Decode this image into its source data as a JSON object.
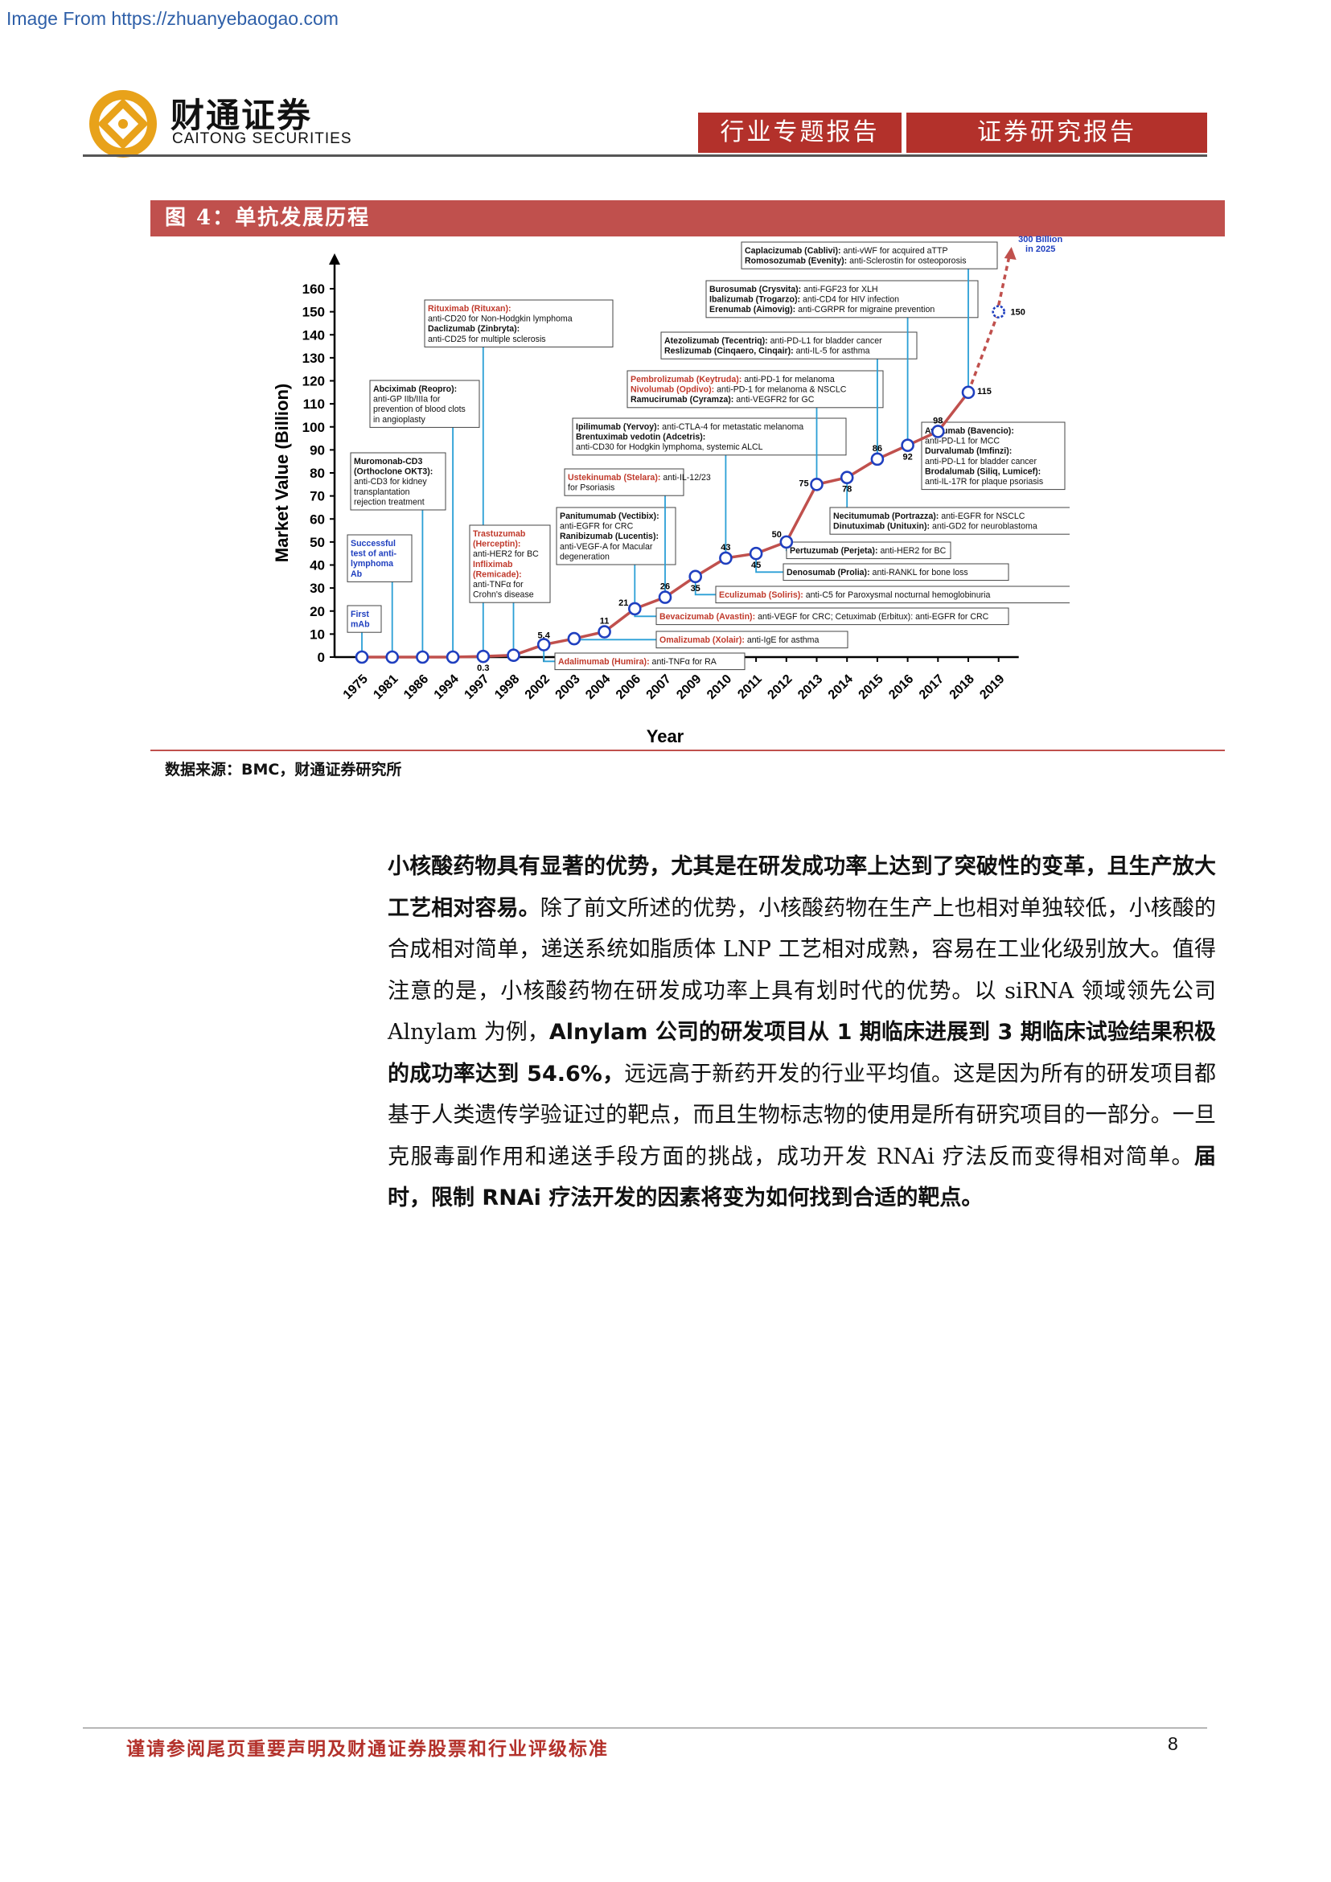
{
  "source_banner": "Image From https://zhuanyebaogao.com",
  "brand": {
    "name_cn": "财通证券",
    "name_en": "CAITONG SECURITIES"
  },
  "header": {
    "tag1": "行业专题报告",
    "tag2": "证券研究报告"
  },
  "figure": {
    "title": "图 4：单抗发展历程",
    "source": "数据来源：BMC，财通证券研究所"
  },
  "chart_data": {
    "type": "line",
    "ylabel": "Market Value (Billion)",
    "xlabel": "Year",
    "ylim": [
      0,
      160
    ],
    "yticks": [
      0,
      10,
      20,
      30,
      40,
      50,
      60,
      70,
      80,
      90,
      100,
      110,
      120,
      130,
      140,
      150,
      160
    ],
    "categories": [
      "1975",
      "1981",
      "1986",
      "1994",
      "1997",
      "1998",
      "2002",
      "2003",
      "2004",
      "2006",
      "2007",
      "2009",
      "2010",
      "2011",
      "2012",
      "2013",
      "2014",
      "2015",
      "2016",
      "2017",
      "2018",
      "2019"
    ],
    "values": [
      0,
      0,
      0,
      0,
      0.3,
      0.8,
      5.4,
      8,
      11,
      21,
      26,
      35,
      43,
      45,
      50,
      75,
      78,
      86,
      92,
      98,
      115,
      150
    ],
    "point_labels": [
      "",
      "",
      "",
      "",
      "0.3",
      "",
      "5.4",
      "",
      "11",
      "21",
      "26",
      "35",
      "43",
      "45",
      "50",
      "75",
      "78",
      "86",
      "92",
      "98",
      "115",
      "150"
    ],
    "projection_label": "300 Billion in 2025",
    "colors": {
      "line": "#c0504d",
      "marker": "#1f3fbf",
      "connector": "#2a9fd6",
      "red_text": "#c0392b",
      "blue_text": "#1f3fbf"
    },
    "annotations": [
      {
        "lines": [
          {
            "t": "First",
            "c": "blue",
            "b": true
          },
          {
            "t": "mAb",
            "c": "blue",
            "b": true
          }
        ]
      },
      {
        "lines": [
          {
            "t": "Successful",
            "c": "blue",
            "b": true
          },
          {
            "t": "test of anti-",
            "c": "blue",
            "b": true
          },
          {
            "t": "lymphoma",
            "c": "blue",
            "b": true
          },
          {
            "t": "Ab",
            "c": "blue",
            "b": true
          }
        ]
      },
      {
        "lines": [
          {
            "t": "Muromonab-CD3",
            "b": true
          },
          {
            "t": "(Orthoclone OKT3):",
            "b": true
          },
          {
            "t": "anti-CD3 for kidney"
          },
          {
            "t": "transplantation"
          },
          {
            "t": "rejection treatment"
          }
        ]
      },
      {
        "lines": [
          {
            "t": "Abciximab (Reopro):",
            "b": true
          },
          {
            "t": "anti-GP IIb/IIIa for"
          },
          {
            "t": "prevention of blood clots"
          },
          {
            "t": "in angioplasty"
          }
        ]
      },
      {
        "lines": [
          {
            "t": "Rituximab (Rituxan):",
            "c": "red",
            "b": true
          },
          {
            "t": "anti-CD20 for Non-Hodgkin lymphoma"
          },
          {
            "t": "Daclizumab (Zinbryta):",
            "b": true
          },
          {
            "t": "anti-CD25 for multiple sclerosis"
          }
        ]
      },
      {
        "lines": [
          {
            "t": "Trastuzumab",
            "c": "red",
            "b": true
          },
          {
            "t": "(Herceptin):",
            "c": "red",
            "b": true
          },
          {
            "t": "anti-HER2 for BC"
          },
          {
            "t": "Infliximab",
            "c": "red",
            "b": true
          },
          {
            "t": "(Remicade):",
            "c": "red",
            "b": true
          },
          {
            "t": "anti-TNFα for"
          },
          {
            "t": "Crohn's disease"
          }
        ]
      },
      {
        "lines": [
          {
            "t": "Adalimumab (Humira):",
            "c": "red",
            "b": true,
            "r": " anti-TNFα for RA"
          }
        ]
      },
      {
        "lines": [
          {
            "t": "Omalizumab (Xolair):",
            "c": "red",
            "b": true,
            "r": " anti-IgE for asthma"
          }
        ]
      },
      {
        "lines": [
          {
            "t": "Panitumumab (Vectibix):",
            "b": true
          },
          {
            "t": "anti-EGFR for CRC"
          },
          {
            "t": "Ranibizumab (Lucentis):",
            "b": true
          },
          {
            "t": "anti-VEGF-A for Macular"
          },
          {
            "t": "degeneration"
          }
        ]
      },
      {
        "lines": [
          {
            "t": "Ustekinumab (Stelara):",
            "c": "red",
            "b": true,
            "r": " anti-IL-12/23"
          },
          {
            "t": "for Psoriasis"
          }
        ]
      },
      {
        "lines": [
          {
            "t": "Bevacizumab (Avastin):",
            "c": "red",
            "b": true,
            "r": " anti-VEGF for CRC; Cetuximab (Erbitux): anti-EGFR for CRC"
          }
        ]
      },
      {
        "lines": [
          {
            "t": "Eculizumab (Soliris):",
            "c": "red",
            "b": true,
            "r": " anti-C5 for Paroxysmal nocturnal hemoglobinuria"
          }
        ]
      },
      {
        "lines": [
          {
            "t": "Ipilimumab (Yervoy):",
            "b": true,
            "r": " anti-CTLA-4 for metastatic melanoma"
          },
          {
            "t": "Brentuximab vedotin (Adcetris):",
            "b": true
          },
          {
            "t": "anti-CD30 for Hodgkin lymphoma, systemic ALCL"
          }
        ]
      },
      {
        "lines": [
          {
            "t": "Denosumab (Prolia):",
            "b": true,
            "r": " anti-RANKL for bone loss"
          }
        ]
      },
      {
        "lines": [
          {
            "t": "Pertuzumab (Perjeta):",
            "b": true,
            "r": " anti-HER2 for BC"
          }
        ]
      },
      {
        "lines": [
          {
            "t": "Pembrolizumab (Keytruda):",
            "c": "red",
            "b": true,
            "r": " anti-PD-1 for melanoma"
          },
          {
            "t": "Nivolumab (Opdivo):",
            "c": "red",
            "b": true,
            "r": " anti-PD-1 for melanoma & NSCLC"
          },
          {
            "t": "Ramucirumab (Cyramza):",
            "b": true,
            "r": " anti-VEGFR2 for GC"
          }
        ]
      },
      {
        "lines": [
          {
            "t": "Necitumumab (Portrazza):",
            "b": true,
            "r": " anti-EGFR for NSCLC"
          },
          {
            "t": "Dinutuximab (Unituxin):",
            "b": true,
            "r": " anti-GD2 for neuroblastoma"
          }
        ]
      },
      {
        "lines": [
          {
            "t": "Atezolizumab (Tecentriq):",
            "b": true,
            "r": " anti-PD-L1 for bladder cancer"
          },
          {
            "t": "Reslizumab (Cinqaero, Cinqair):",
            "b": true,
            "r": " anti-IL-5 for asthma"
          }
        ]
      },
      {
        "lines": [
          {
            "t": "Burosumab (Crysvita):",
            "b": true,
            "r": " anti-FGF23 for XLH"
          },
          {
            "t": "Ibalizumab (Trogarzo):",
            "b": true,
            "r": " anti-CD4 for HIV infection"
          },
          {
            "t": "Erenumab (Aimovig):",
            "b": true,
            "r": " anti-CGRPR for migraine prevention"
          }
        ]
      },
      {
        "lines": [
          {
            "t": "Avelumab (Bavencio):",
            "b": true
          },
          {
            "t": "anti-PD-L1 for MCC"
          },
          {
            "t": "Durvalumab (Imfinzi):",
            "b": true
          },
          {
            "t": "anti-PD-L1 for bladder cancer"
          },
          {
            "t": "Brodalumab (Siliq, Lumicef):",
            "b": true
          },
          {
            "t": "anti-IL-17R for plaque psoriasis"
          }
        ]
      },
      {
        "lines": [
          {
            "t": "Caplacizumab (Cablivi):",
            "b": true,
            "r": " anti-vWF for acquired aTTP"
          },
          {
            "t": "Romosozumab (Evenity):",
            "b": true,
            "r": " anti-Sclerostin for osteoporosis"
          }
        ]
      }
    ]
  },
  "body": {
    "p1": "小核酸药物具有显著的优势，尤其是在研发成功率上达到了突破性的变革，且生产放大工艺相对容易。",
    "p2": "除了前文所述的优势，小核酸药物在生产上也相对单独较低，小核酸的合成相对简单，递送系统如脂质体 LNP 工艺相对成熟，容易在工业化级别放大。值得注意的是，小核酸药物在研发成功率上具有划时代的优势。以 siRNA 领域领先公司 Alnylam 为例，",
    "p3": "Alnylam 公司的研发项目从 1 期临床进展到 3 期临床试验结果积极的成功率达到 54.6%，",
    "p4": "远远高于新药开发的行业平均值。这是因为所有的研发项目都基于人类遗传学验证过的靶点，而且生物标志物的使用是所有研究项目的一部分。一旦克服毒副作用和递送手段方面的挑战，成功开发 RNAi 疗法反而变得相对简单。",
    "p5": "届时，限制 RNAi 疗法开发的因素将变为如何找到合适的靶点。"
  },
  "footer": {
    "note": "谨请参阅尾页重要声明及财通证券股票和行业评级标准",
    "page": "8"
  }
}
